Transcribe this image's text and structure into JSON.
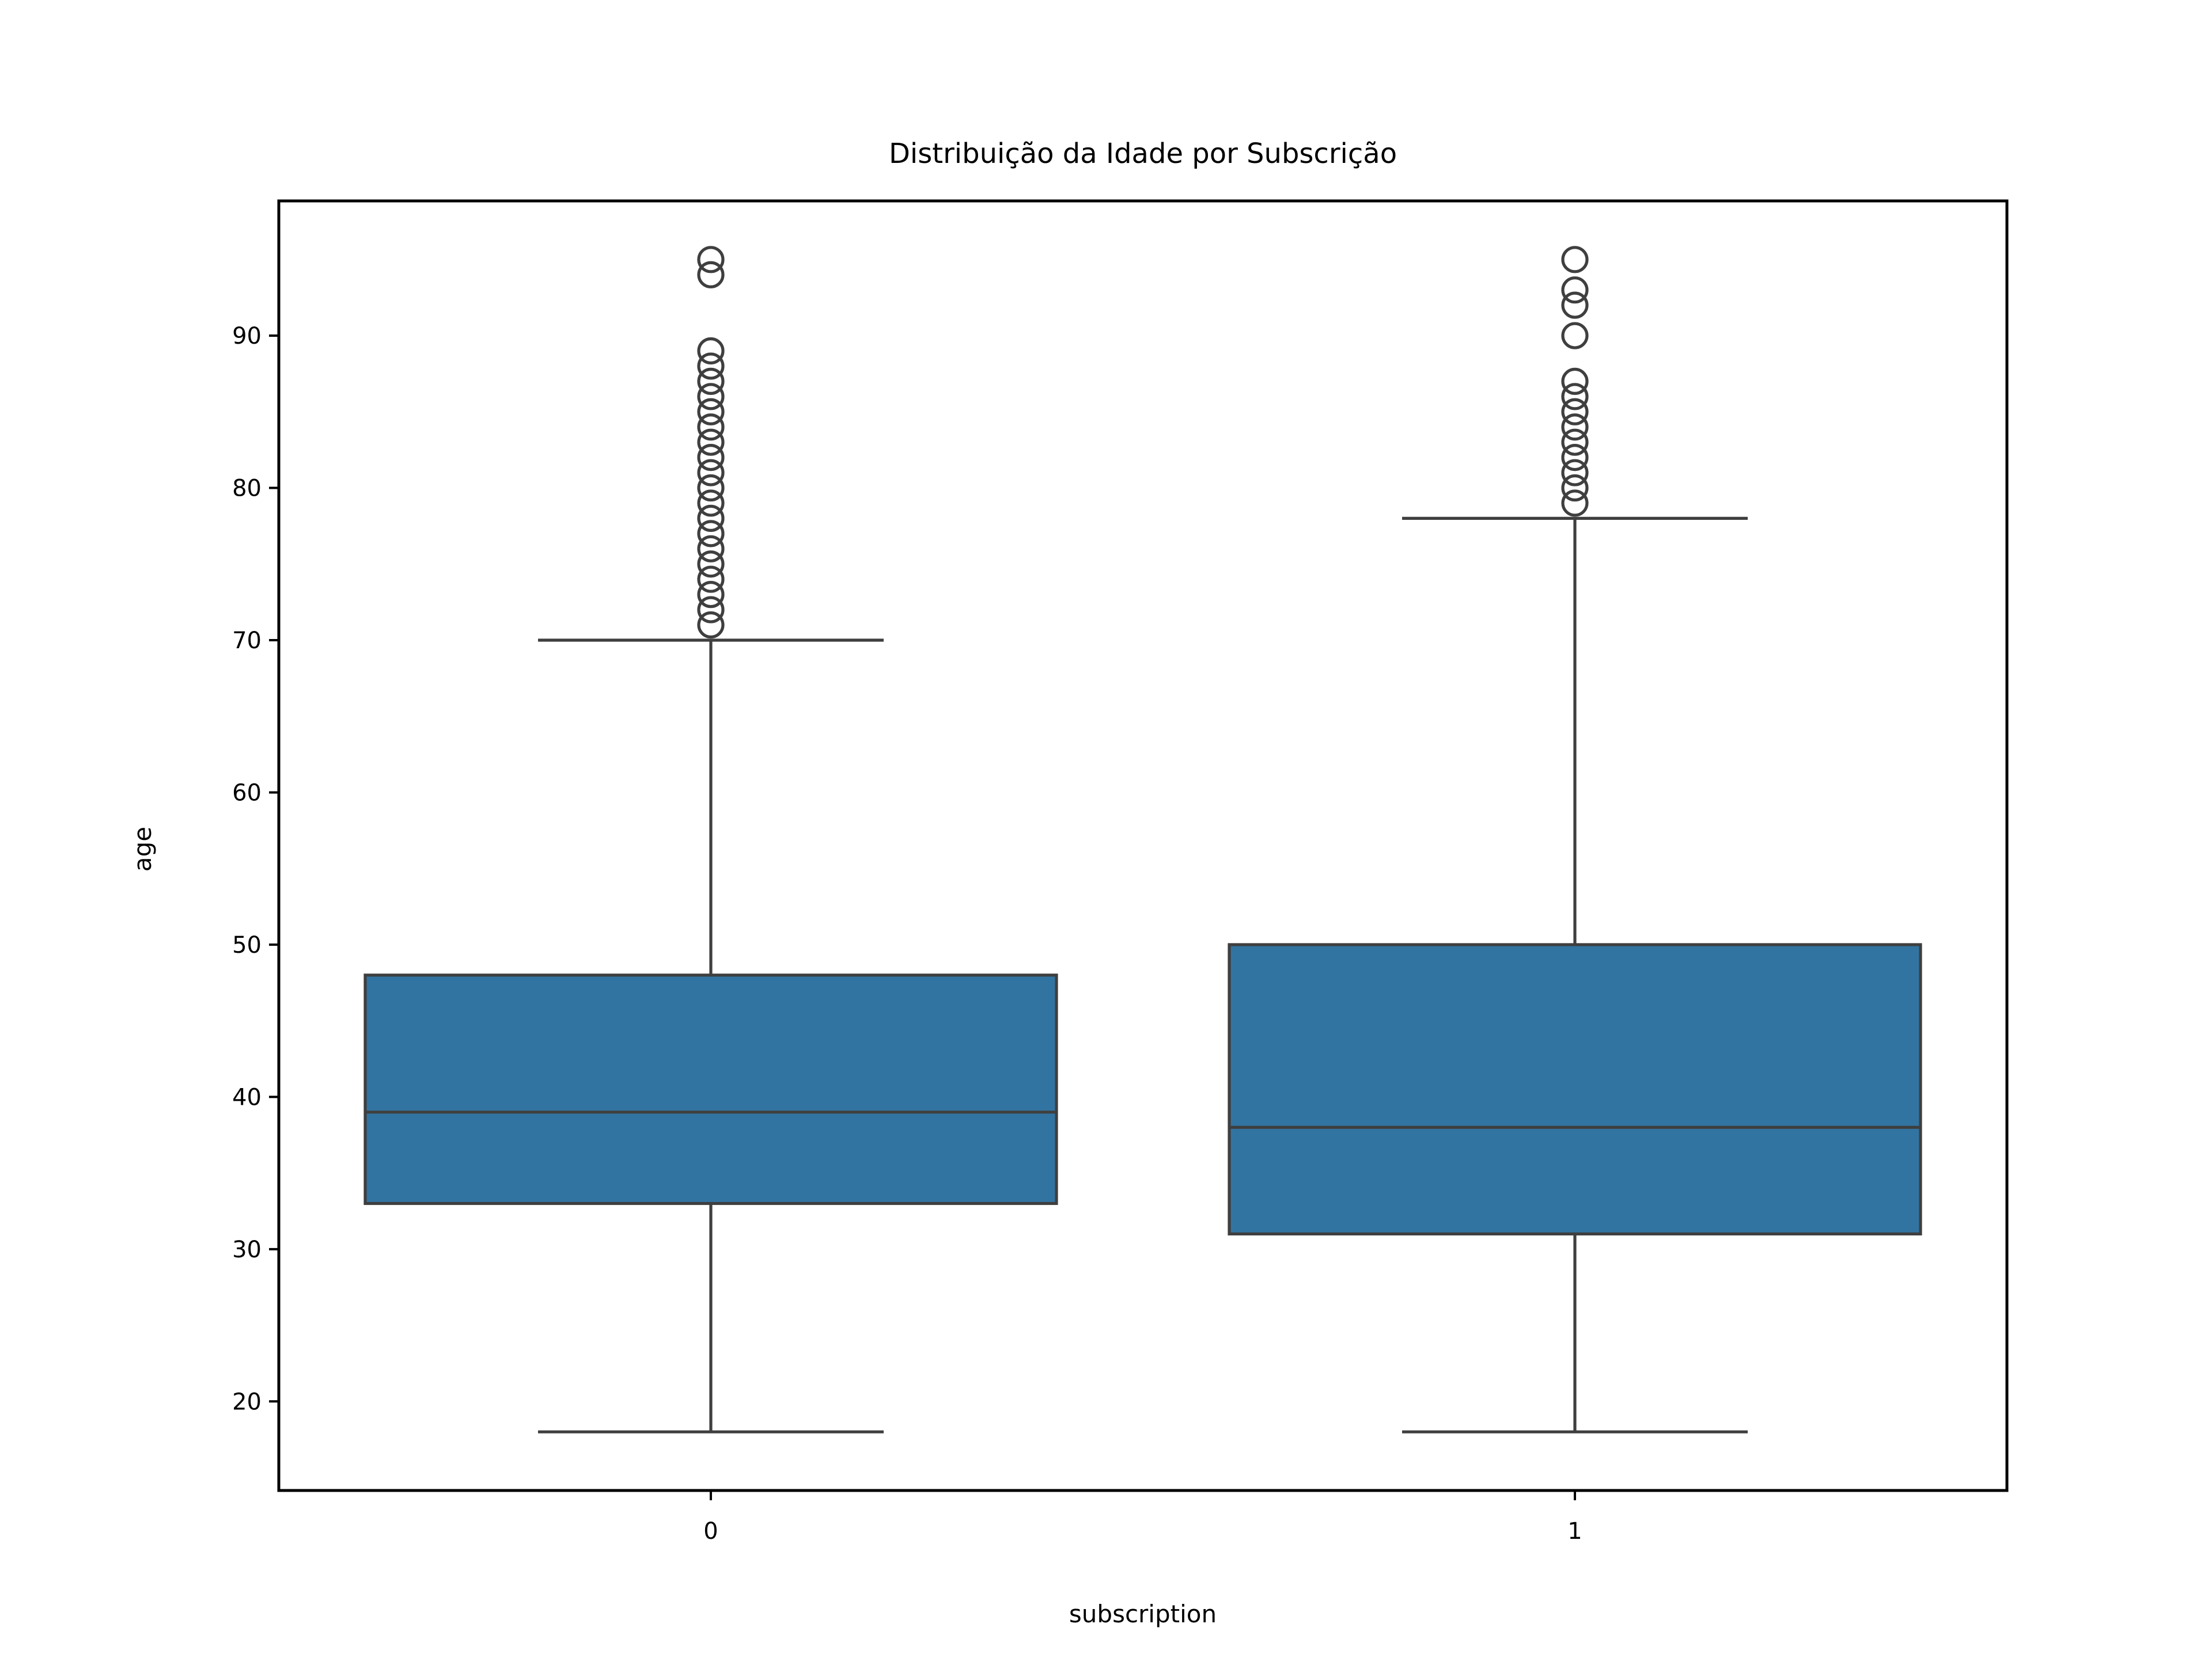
{
  "chart_data": {
    "type": "box",
    "title": "Distribuição da Idade por Subscrição",
    "xlabel": "subscription",
    "ylabel": "age",
    "categories": [
      "0",
      "1"
    ],
    "ylim": [
      14.15,
      98.85
    ],
    "yticks": [
      20,
      30,
      40,
      50,
      60,
      70,
      80,
      90
    ],
    "grid": false,
    "legend": "none",
    "colors": {
      "box_fill": "#3274a1",
      "line": "#3f3f3f",
      "frame": "#000000"
    },
    "boxes": [
      {
        "category": "0",
        "whisker_low": 18,
        "q1": 33,
        "median": 39,
        "q3": 48,
        "whisker_high": 70,
        "outliers": [
          71,
          72,
          73,
          74,
          75,
          76,
          77,
          78,
          79,
          80,
          81,
          82,
          83,
          84,
          85,
          86,
          87,
          88,
          89,
          94,
          95
        ]
      },
      {
        "category": "1",
        "whisker_low": 18,
        "q1": 31,
        "median": 38,
        "q3": 50,
        "whisker_high": 78,
        "outliers": [
          79,
          80,
          81,
          82,
          83,
          84,
          85,
          86,
          87,
          90,
          92,
          93,
          95
        ]
      }
    ]
  }
}
